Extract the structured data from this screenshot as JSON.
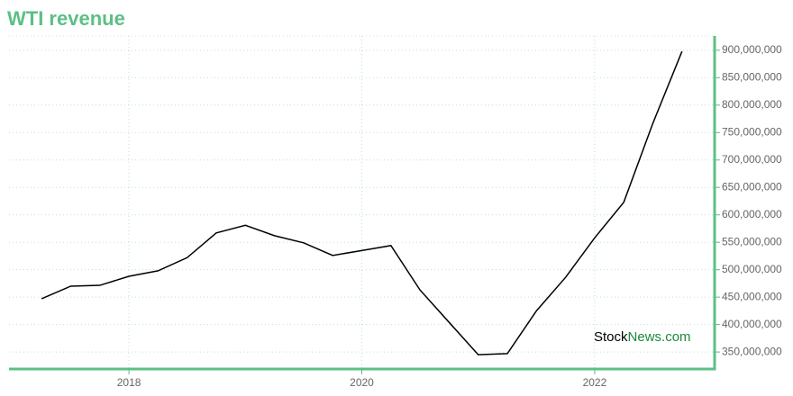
{
  "chart_data": {
    "type": "line",
    "title": "WTI revenue",
    "watermark": [
      "Stock",
      "News.com"
    ],
    "x": [
      2017.25,
      2017.5,
      2017.75,
      2018.0,
      2018.25,
      2018.5,
      2018.75,
      2019.0,
      2019.25,
      2019.5,
      2019.75,
      2020.0,
      2020.25,
      2020.5,
      2020.75,
      2021.0,
      2021.25,
      2021.5,
      2021.75,
      2022.0,
      2022.25,
      2022.5,
      2022.75
    ],
    "series": [
      {
        "color": "#000000",
        "values": [
          447000000,
          470000000,
          471500000,
          488000000,
          498000000,
          522000000,
          567000000,
          581000000,
          562000000,
          549000000,
          526000000,
          535000000,
          544000000,
          463000000,
          404000000,
          345000000,
          347000000,
          425000000,
          486000000,
          558000000,
          623000000,
          767000000,
          898000000
        ]
      }
    ],
    "xlim": [
      2016.97,
      2023.03
    ],
    "xticks": [
      2018,
      2020,
      2022
    ],
    "ylim": [
      319000000,
      926000000
    ],
    "yticks": [
      {
        "value": 350000000,
        "label": "350,000,000"
      },
      {
        "value": 400000000,
        "label": "400,000,000"
      },
      {
        "value": 450000000,
        "label": "450,000,000"
      },
      {
        "value": 500000000,
        "label": "500,000,000"
      },
      {
        "value": 550000000,
        "label": "550,000,000"
      },
      {
        "value": 600000000,
        "label": "600,000,000"
      },
      {
        "value": 650000000,
        "label": "650,000,000"
      },
      {
        "value": 700000000,
        "label": "700,000,000"
      },
      {
        "value": 750000000,
        "label": "750,000,000"
      },
      {
        "value": 800000000,
        "label": "800,000,000"
      },
      {
        "value": 850000000,
        "label": "850,000,000"
      },
      {
        "value": 900000000,
        "label": "900,000,000"
      }
    ],
    "grid": true,
    "axis_color": "#5cbf86"
  }
}
